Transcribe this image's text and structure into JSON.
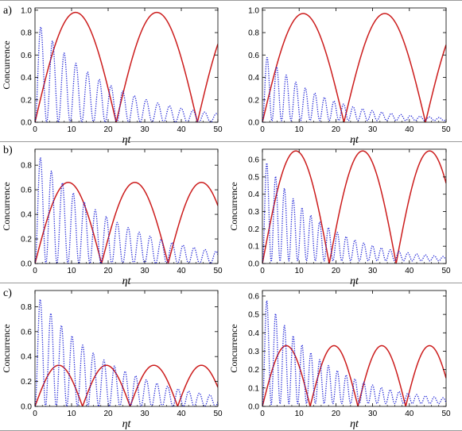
{
  "row_labels": [
    "a)",
    "b)",
    "c)"
  ],
  "colors": {
    "solid": "#cc1c1c",
    "dotted": "#1f24d6",
    "axis": "#000000"
  },
  "chart_data": [
    {
      "type": "line",
      "row": "a)",
      "column": "left",
      "ylabel": "Concurrence",
      "xlabel": "ηt",
      "xlim": [
        0,
        50
      ],
      "ylim": [
        0,
        1.02
      ],
      "x_ticks": [
        "0",
        "10",
        "20",
        "30",
        "40",
        "50"
      ],
      "y_ticks": [
        "0.0",
        "0.2",
        "0.4",
        "0.6",
        "0.8",
        "1.0"
      ],
      "y_tick_values": [
        0,
        0.2,
        0.4,
        0.6,
        0.8,
        1.0
      ],
      "series": [
        {
          "style": "solid",
          "kind": "abs_sin",
          "amplitude": 0.98,
          "half_period": 22.2,
          "phase": 0
        },
        {
          "style": "dotted",
          "kind": "decay_osc",
          "amplitude": 0.92,
          "period": 3.2,
          "decay": 0.05,
          "floor": 0.0
        }
      ]
    },
    {
      "type": "line",
      "row": "a)",
      "column": "right",
      "ylabel": "",
      "xlabel": "ηt",
      "xlim": [
        0,
        50
      ],
      "ylim": [
        0,
        1.02
      ],
      "x_ticks": [
        "0",
        "10",
        "20",
        "30",
        "40",
        "50"
      ],
      "y_ticks": [
        "0.0",
        "0.2",
        "0.4",
        "0.6",
        "0.8",
        "1.0"
      ],
      "y_tick_values": [
        0,
        0.2,
        0.4,
        0.6,
        0.8,
        1.0
      ],
      "series": [
        {
          "style": "solid",
          "kind": "abs_sin",
          "amplitude": 0.97,
          "half_period": 22.2,
          "phase": 0
        },
        {
          "style": "dotted",
          "kind": "decay_osc",
          "amplitude": 0.62,
          "period": 2.6,
          "decay": 0.065,
          "floor": 0.015
        }
      ]
    },
    {
      "type": "line",
      "row": "b)",
      "column": "left",
      "ylabel": "Concurrence",
      "xlabel": "ηt",
      "xlim": [
        0,
        50
      ],
      "ylim": [
        0,
        0.93
      ],
      "x_ticks": [
        "0",
        "10",
        "20",
        "30",
        "40",
        "50"
      ],
      "y_ticks": [
        "0.0",
        "0.2",
        "0.4",
        "0.6",
        "0.8"
      ],
      "y_tick_values": [
        0,
        0.2,
        0.4,
        0.6,
        0.8
      ],
      "series": [
        {
          "style": "solid",
          "kind": "abs_sin",
          "amplitude": 0.66,
          "half_period": 18.2,
          "phase": 0
        },
        {
          "style": "dotted",
          "kind": "decay_osc",
          "amplitude": 0.92,
          "period": 3.0,
          "decay": 0.045,
          "floor": 0.0
        }
      ]
    },
    {
      "type": "line",
      "row": "b)",
      "column": "right",
      "ylabel": "Concurrence",
      "xlabel": "ηt",
      "xlim": [
        0,
        50
      ],
      "ylim": [
        0,
        0.66
      ],
      "x_ticks": [
        "0",
        "10",
        "20",
        "30",
        "40",
        "50"
      ],
      "y_ticks": [
        "0.0",
        "0.1",
        "0.2",
        "0.3",
        "0.4",
        "0.5",
        "0.6"
      ],
      "y_tick_values": [
        0,
        0.1,
        0.2,
        0.3,
        0.4,
        0.5,
        0.6
      ],
      "series": [
        {
          "style": "solid",
          "kind": "abs_sin",
          "amplitude": 0.65,
          "half_period": 18.2,
          "phase": 0
        },
        {
          "style": "dotted",
          "kind": "decay_osc",
          "amplitude": 0.62,
          "period": 2.4,
          "decay": 0.065,
          "floor": 0.015
        }
      ]
    },
    {
      "type": "line",
      "row": "c)",
      "column": "left",
      "ylabel": "Concurrence",
      "xlabel": "ηt",
      "xlim": [
        0,
        50
      ],
      "ylim": [
        0,
        0.93
      ],
      "x_ticks": [
        "0",
        "10",
        "20",
        "30",
        "40",
        "50"
      ],
      "y_ticks": [
        "0.0",
        "0.2",
        "0.4",
        "0.6",
        "0.8"
      ],
      "y_tick_values": [
        0,
        0.2,
        0.4,
        0.6,
        0.8
      ],
      "series": [
        {
          "style": "solid",
          "kind": "abs_sin",
          "amplitude": 0.33,
          "half_period": 13.0,
          "phase": 0
        },
        {
          "style": "dotted",
          "kind": "decay_osc",
          "amplitude": 0.92,
          "period": 2.9,
          "decay": 0.048,
          "floor": 0.0
        }
      ]
    },
    {
      "type": "line",
      "row": "c)",
      "column": "right",
      "ylabel": "Concurrence",
      "xlabel": "ηt",
      "xlim": [
        0,
        50
      ],
      "ylim": [
        0,
        0.63
      ],
      "x_ticks": [
        "0",
        "10",
        "20",
        "30",
        "40",
        "50"
      ],
      "y_ticks": [
        "0.0",
        "0.1",
        "0.2",
        "0.3",
        "0.4",
        "0.5",
        "0.6"
      ],
      "y_tick_values": [
        0,
        0.1,
        0.2,
        0.3,
        0.4,
        0.5,
        0.6
      ],
      "series": [
        {
          "style": "solid",
          "kind": "abs_sin",
          "amplitude": 0.33,
          "half_period": 13.0,
          "phase": 0
        },
        {
          "style": "dotted",
          "kind": "decay_osc",
          "amplitude": 0.61,
          "period": 2.4,
          "decay": 0.06,
          "floor": 0.015
        }
      ]
    }
  ]
}
